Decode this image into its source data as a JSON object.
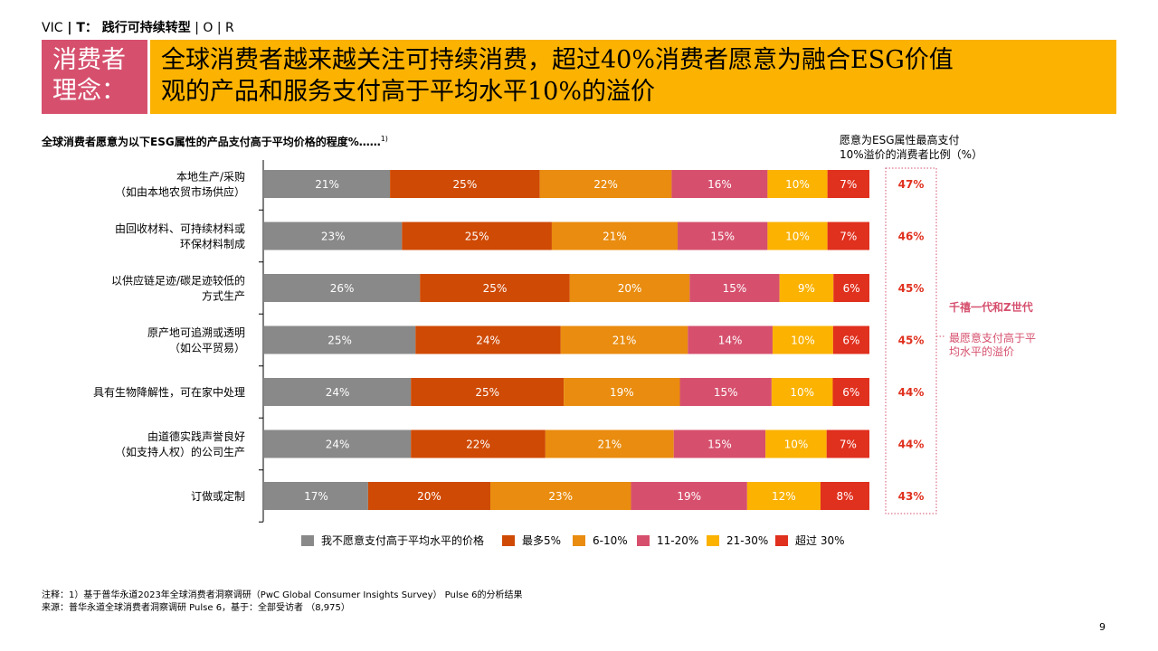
{
  "breadcrumb": {
    "prefix": "VIC",
    "sep1": " | ",
    "bold_item": "T：",
    "current": " 践行可持续转型",
    "rest": " | O | R"
  },
  "header": {
    "label_line1": "消费者",
    "label_line2": "理念：",
    "headline_line1": "全球消费者越来越关注可持续消费，超过40%消费者愿意为融合ESG价值",
    "headline_line2": "观的产品和服务支付高于平均水平10%的溢价"
  },
  "colors": {
    "label_bg": "#d6506e",
    "headline_bg": "#fbb200",
    "accent_pink": "#d6506e"
  },
  "chart_data": {
    "type": "bar",
    "orientation": "horizontal-stacked-percent",
    "title": "全球消费者愿意为以下ESG属性的产品支付高于平均价格的程度%……",
    "title_sup": "1)",
    "categories": [
      [
        "本地生产/采购",
        "（如由本地农贸市场供应）"
      ],
      [
        "由回收材料、可持续材料或",
        "环保材料制成"
      ],
      [
        "以供应链足迹/碳足迹较低的",
        "方式生产"
      ],
      [
        "原产地可追溯或透明",
        "（如公平贸易）"
      ],
      [
        "具有生物降解性，可在家中处理"
      ],
      [
        "由道德实践声誉良好",
        "（如支持人权）的公司生产"
      ],
      [
        "订做或定制"
      ]
    ],
    "series": [
      {
        "name": "我不愿意支付高于平均水平的价格",
        "color": "#898989",
        "values": [
          21,
          23,
          26,
          25,
          24,
          24,
          17
        ]
      },
      {
        "name": "最多5%",
        "color": "#cf4a04",
        "values": [
          25,
          25,
          25,
          24,
          25,
          22,
          20
        ]
      },
      {
        "name": "6-10%",
        "color": "#e98c0f",
        "values": [
          22,
          21,
          20,
          21,
          19,
          21,
          23
        ]
      },
      {
        "name": "11-20%",
        "color": "#d6506e",
        "values": [
          16,
          15,
          15,
          14,
          15,
          15,
          19
        ]
      },
      {
        "name": "21-30%",
        "color": "#fbb200",
        "values": [
          10,
          10,
          9,
          10,
          10,
          10,
          12
        ]
      },
      {
        "name": "超过 30%",
        "color": "#e0301e",
        "values": [
          7,
          7,
          6,
          6,
          6,
          7,
          8
        ]
      }
    ],
    "xlim": [
      0,
      100
    ],
    "legend_position": "bottom",
    "side_title_line1": "愿意为ESG属性最高支付",
    "side_title_line2": "10%溢价的消费者比例（%）",
    "side_values": [
      "47%",
      "46%",
      "45%",
      "45%",
      "44%",
      "44%",
      "43%"
    ],
    "side_color": "#e0301e"
  },
  "callout": {
    "title": "千禧一代和Z世代",
    "body": "最愿意支付高于平均水平的溢价"
  },
  "footnotes": {
    "note": "注释：1）基于普华永道2023年全球消费者洞察调研（PwC Global Consumer Insights Survey） Pulse 6的分析结果",
    "source": "来源：普华永道全球消费者洞察调研 Pulse 6，基于：全部受访者 （8,975）"
  },
  "page_number": "9"
}
